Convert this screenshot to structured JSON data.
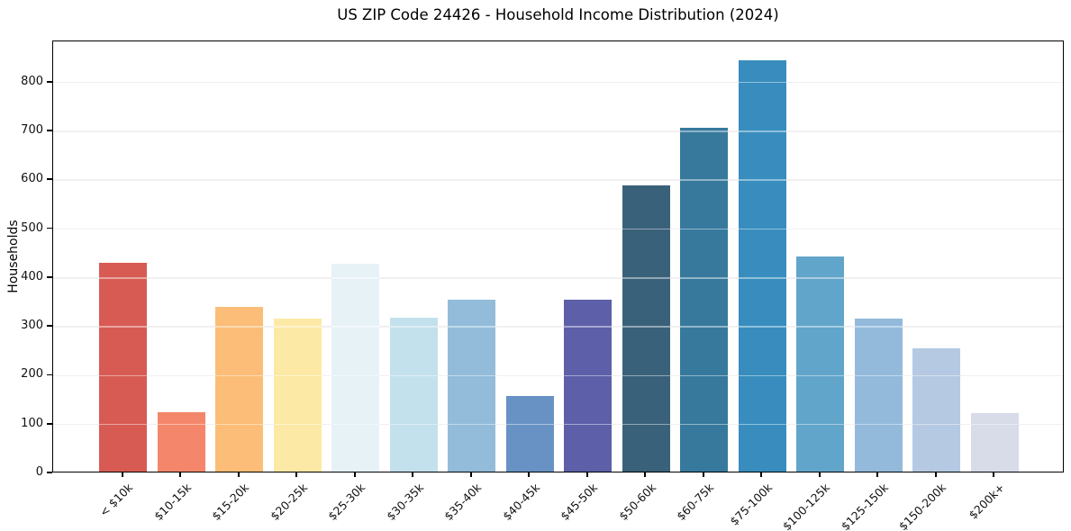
{
  "chart_data": {
    "type": "bar",
    "title": "US ZIP Code 24426 - Household Income Distribution (2024)",
    "xlabel": "",
    "ylabel": "Households",
    "categories": [
      "< $10k",
      "$10-15k",
      "$15-20k",
      "$20-25k",
      "$25-30k",
      "$30-35k",
      "$35-40k",
      "$40-45k",
      "$45-50k",
      "$50-60k",
      "$60-75k",
      "$75-100k",
      "$100-125k",
      "$125-150k",
      "$150-200k",
      "$200k+"
    ],
    "values": [
      428,
      121,
      337,
      313,
      425,
      315,
      351,
      154,
      352,
      585,
      703,
      842,
      440,
      313,
      252,
      120
    ],
    "bar_colors": [
      "#d75b53",
      "#f4876b",
      "#fbbd77",
      "#fde9a6",
      "#e7f2f7",
      "#c3e1ec",
      "#92bcd9",
      "#6892c4",
      "#5d5fa8",
      "#3a617a",
      "#37799d",
      "#388dbe",
      "#62a5ca",
      "#93badb",
      "#b5c9e3",
      "#d8dbe8"
    ],
    "yticks": [
      0,
      100,
      200,
      300,
      400,
      500,
      600,
      700,
      800
    ],
    "ylim": [
      0,
      884
    ],
    "grid": true,
    "gridline_color": "#e3e3e3",
    "background_color": "#ffffff",
    "legend": "none"
  }
}
